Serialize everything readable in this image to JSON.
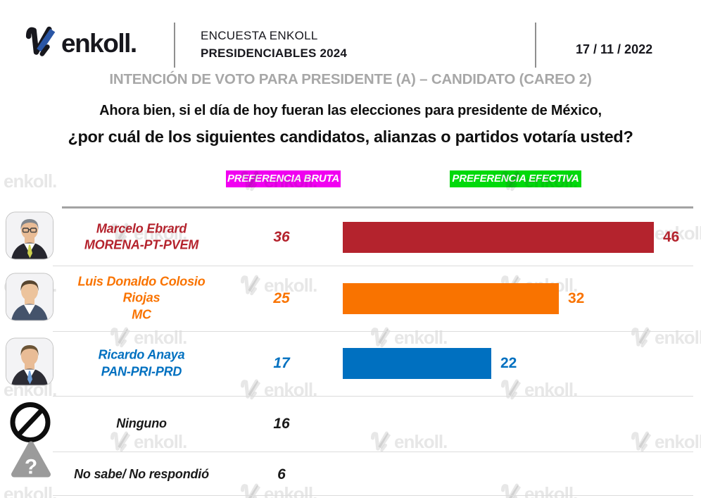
{
  "header": {
    "logo_text": "enkoll.",
    "survey_title_line1": "ENCUESTA ENKOLL",
    "survey_title_line2": "PRESIDENCIABLES 2024",
    "date": "17 / 11 / 2022"
  },
  "section_title": "INTENCIÓN DE VOTO PARA PRESIDENTE (A) – CANDIDATO (CAREO 2)",
  "question": {
    "line1": "Ahora bien, si el día de hoy fueran las elecciones para presidente de México,",
    "line2": "¿por cuál de los siguientes candidatos, alianzas o partidos votaría usted?"
  },
  "legend": {
    "bruta_label": "PREFERENCIA BRUTA",
    "bruta_color": "#F100F1",
    "efectiva_label": "PREFERENCIA EFECTIVA",
    "efectiva_color": "#00D90C"
  },
  "watermark_text": "enkoll.",
  "brand_colors": {
    "logo_black": "#17171d",
    "logo_blue": "#2a56a5"
  },
  "chart_data": {
    "type": "bar",
    "orientation": "horizontal",
    "title": "INTENCIÓN DE VOTO PARA PRESIDENTE (A) – CANDIDATO (CAREO 2)",
    "categories": [
      "Marcelo Ebrard\nMORENA-PT-PVEM",
      "Luis Donaldo Colosio\nRiojas\nMC",
      "Ricardo Anaya\nPAN-PRI-PRD",
      "Ninguno",
      "No sabe/ No respondió"
    ],
    "series": [
      {
        "name": "PREFERENCIA BRUTA",
        "values": [
          36,
          25,
          17,
          16,
          6
        ]
      },
      {
        "name": "PREFERENCIA EFECTIVA",
        "values": [
          46,
          32,
          22,
          null,
          null
        ]
      }
    ],
    "bar_colors": [
      "#B4232D",
      "#F97300",
      "#0070C0",
      null,
      null
    ],
    "xlim": [
      0,
      50
    ],
    "grid": false,
    "legend_position": "top",
    "value_labels": "shown at bar end and in bruta column"
  },
  "rows": [
    {
      "label": "Marcelo Ebrard\nMORENA-PT-PVEM",
      "color": "#B4232D",
      "leading": {
        "kind": "photo",
        "name": "photo-marcelo-ebrard",
        "suit": "#26262e",
        "hair": "#80858b",
        "skin": "#e9bc96",
        "tie": "#cfd24e",
        "glasses": true
      }
    },
    {
      "label": "Luis Donaldo Colosio\nRiojas\nMC",
      "color": "#F97300",
      "leading": {
        "kind": "photo",
        "name": "photo-luis-donaldo-colosio-riojas",
        "suit": "#44536b",
        "hair": "#57452f",
        "skin": "#ecc39c",
        "tie": null,
        "glasses": false
      }
    },
    {
      "label": "Ricardo Anaya\nPAN-PRI-PRD",
      "color": "#0070C0",
      "leading": {
        "kind": "photo",
        "name": "photo-ricardo-anaya",
        "suit": "#2c2c34",
        "hair": "#6b5436",
        "skin": "#e9bc96",
        "tie": "#6f9fd8",
        "glasses": false
      }
    },
    {
      "label": "Ninguno",
      "color": "#1a1a1a",
      "leading": {
        "kind": "icon",
        "name": "prohibited-icon"
      }
    },
    {
      "label": "No sabe/ No respondió",
      "color": "#1a1a1a",
      "leading": {
        "kind": "icon",
        "name": "question-triangle-icon"
      }
    }
  ]
}
